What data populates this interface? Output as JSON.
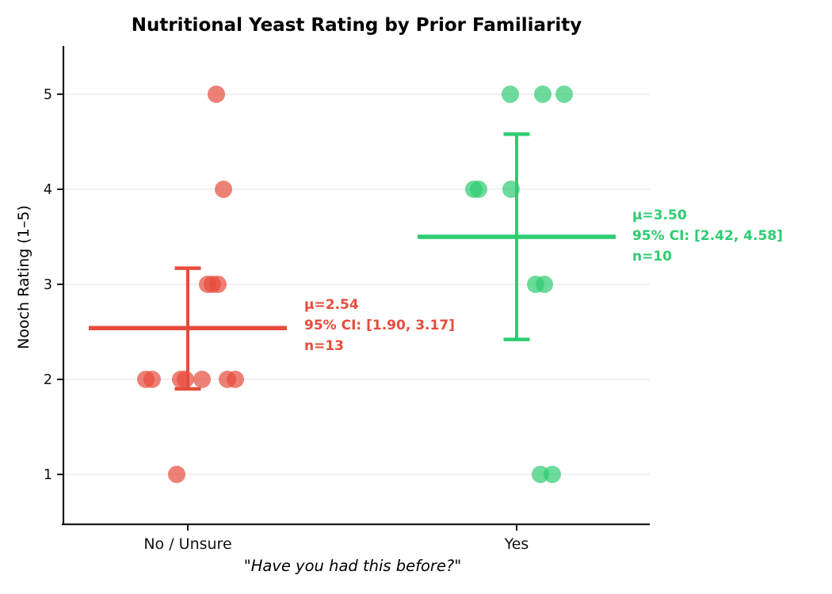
{
  "chart_data": {
    "type": "scatter",
    "title": "Nutritional Yeast Rating by Prior Familiarity",
    "xlabel": "\"Have you had this before?\"",
    "ylabel": "Nooch Rating (1–5)",
    "yticks": [
      1,
      2,
      3,
      4,
      5
    ],
    "ylim": [
      0.5,
      5.5
    ],
    "grid": "horizontal-only",
    "categories": [
      "No / Unsure",
      "Yes"
    ],
    "groups": [
      {
        "label": "No / Unsure",
        "color": "#e74c3c",
        "n": 13,
        "mean": 2.54,
        "ci95": [
          1.9,
          3.17
        ],
        "values": [
          5,
          4,
          3,
          3,
          3,
          2,
          2,
          2,
          2,
          2,
          2,
          2,
          1
        ],
        "annotation": [
          "μ=2.54",
          "95% CI: [1.90, 3.17]",
          "n=13"
        ],
        "points": [
          {
            "v": 5,
            "dx": 36
          },
          {
            "v": 4,
            "dx": 45
          },
          {
            "v": 3,
            "dx": 25
          },
          {
            "v": 3,
            "dx": 31
          },
          {
            "v": 3,
            "dx": 38
          },
          {
            "v": 2,
            "dx": -53
          },
          {
            "v": 2,
            "dx": -45
          },
          {
            "v": 2,
            "dx": -9
          },
          {
            "v": 2,
            "dx": -3
          },
          {
            "v": 2,
            "dx": 18
          },
          {
            "v": 2,
            "dx": 50
          },
          {
            "v": 2,
            "dx": 60
          },
          {
            "v": 1,
            "dx": -14
          }
        ]
      },
      {
        "label": "Yes",
        "color": "#2ecc71",
        "n": 10,
        "mean": 3.5,
        "ci95": [
          2.42,
          4.58
        ],
        "values": [
          5,
          5,
          5,
          4,
          4,
          4,
          3,
          3,
          1,
          1
        ],
        "annotation": [
          "μ=3.50",
          "95% CI: [2.42, 4.58]",
          "n=10"
        ],
        "points": [
          {
            "v": 5,
            "dx": -8
          },
          {
            "v": 5,
            "dx": 33
          },
          {
            "v": 5,
            "dx": 60
          },
          {
            "v": 4,
            "dx": -54
          },
          {
            "v": 4,
            "dx": -48
          },
          {
            "v": 4,
            "dx": -7
          },
          {
            "v": 3,
            "dx": 24
          },
          {
            "v": 3,
            "dx": 35
          },
          {
            "v": 1,
            "dx": 30
          },
          {
            "v": 1,
            "dx": 45
          }
        ]
      }
    ]
  }
}
